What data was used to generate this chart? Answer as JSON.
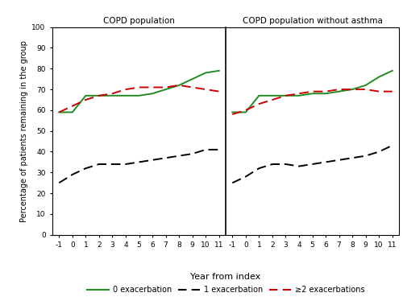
{
  "x": [
    -1,
    0,
    1,
    2,
    3,
    4,
    5,
    6,
    7,
    8,
    9,
    10,
    11
  ],
  "panel1_title": "COPD population",
  "panel2_title": "COPD population without asthma",
  "panel1": {
    "green": [
      59,
      59,
      67,
      67,
      67,
      67,
      67,
      68,
      70,
      72,
      75,
      78,
      79
    ],
    "black": [
      25,
      29,
      32,
      34,
      34,
      34,
      35,
      36,
      37,
      38,
      39,
      41,
      41
    ],
    "red": [
      59,
      62,
      65,
      67,
      68,
      70,
      71,
      71,
      71,
      72,
      71,
      70,
      69
    ]
  },
  "panel2": {
    "green": [
      59,
      59,
      67,
      67,
      67,
      67,
      68,
      68,
      69,
      70,
      72,
      76,
      79
    ],
    "black": [
      25,
      28,
      32,
      34,
      34,
      33,
      34,
      35,
      36,
      37,
      38,
      40,
      43
    ],
    "red": [
      58,
      60,
      63,
      65,
      67,
      68,
      69,
      69,
      70,
      70,
      70,
      69,
      69
    ]
  },
  "green_color": "#228B22",
  "black_color": "#000000",
  "red_color": "#cc0000",
  "ylabel": "Percentage of patients remaining in the group",
  "xlabel": "Year from index",
  "ylim": [
    0,
    100
  ],
  "yticks": [
    0,
    10,
    20,
    30,
    40,
    50,
    60,
    70,
    80,
    90,
    100
  ],
  "xticks": [
    -1,
    0,
    1,
    2,
    3,
    4,
    5,
    6,
    7,
    8,
    9,
    10,
    11
  ],
  "legend_labels": [
    "0 exacerbation",
    "1 exacerbation",
    "≥2 exacerbations"
  ],
  "background_color": "#ffffff"
}
